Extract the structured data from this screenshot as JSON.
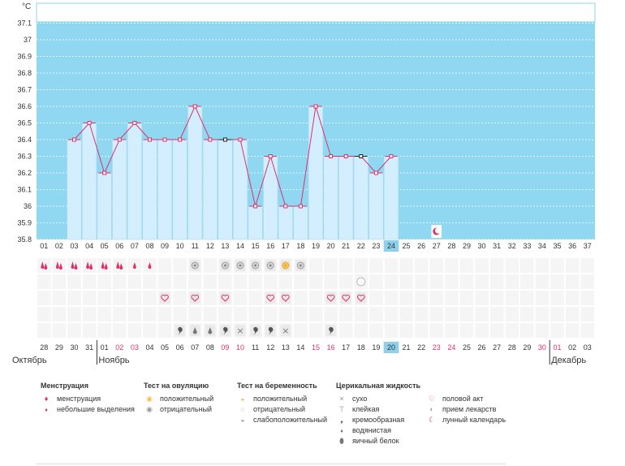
{
  "chart_data": {
    "type": "bar",
    "ylabel": "°C",
    "ylim": [
      35.8,
      37.15
    ],
    "y_ticks": [
      "35.8",
      "35.9",
      "36",
      "36.1",
      "36.2",
      "36.3",
      "36.4",
      "36.5",
      "36.6",
      "36.7",
      "36.8",
      "36.9",
      "37",
      "37.1"
    ],
    "cycle_days": [
      "01",
      "02",
      "03",
      "04",
      "05",
      "06",
      "07",
      "08",
      "09",
      "10",
      "11",
      "12",
      "13",
      "14",
      "15",
      "16",
      "17",
      "18",
      "19",
      "20",
      "21",
      "22",
      "23",
      "24",
      "25",
      "26",
      "27",
      "28",
      "29",
      "30",
      "31",
      "32",
      "33",
      "34",
      "35",
      "36",
      "37"
    ],
    "today_index": 23,
    "temperatures": [
      null,
      null,
      36.4,
      36.5,
      36.2,
      36.4,
      36.5,
      36.4,
      36.4,
      36.4,
      36.6,
      36.4,
      36.4,
      36.4,
      36.0,
      36.3,
      36.0,
      36.0,
      36.6,
      36.3,
      36.3,
      36.3,
      36.2,
      36.3,
      null,
      null,
      null,
      null,
      null,
      null,
      null,
      null,
      null,
      null,
      null,
      null,
      null
    ],
    "marker_styles": [
      "",
      "",
      "pink",
      "pink",
      "pink",
      "pink",
      "pink",
      "pink",
      "pink",
      "pink",
      "pink",
      "pink",
      "black",
      "pink",
      "pink",
      "pink",
      "pink",
      "pink",
      "pink",
      "pink",
      "pink",
      "black",
      "pink",
      "pink",
      "",
      "",
      "",
      "",
      "",
      "",
      "",
      "",
      "",
      "",
      "",
      "",
      ""
    ],
    "calendar_dates": [
      "28",
      "29",
      "30",
      "31",
      "01",
      "02",
      "03",
      "04",
      "05",
      "06",
      "07",
      "08",
      "09",
      "10",
      "11",
      "12",
      "13",
      "14",
      "15",
      "16",
      "17",
      "18",
      "19",
      "20",
      "21",
      "22",
      "23",
      "24",
      "25",
      "26",
      "27",
      "28",
      "29",
      "30",
      "01",
      "02",
      "03"
    ],
    "date_colors": [
      "n",
      "n",
      "n",
      "n",
      "n",
      "r",
      "r",
      "n",
      "n",
      "n",
      "n",
      "n",
      "r",
      "r",
      "n",
      "n",
      "n",
      "n",
      "r",
      "r",
      "n",
      "n",
      "n",
      "n",
      "n",
      "n",
      "r",
      "r",
      "n",
      "n",
      "n",
      "n",
      "n",
      "r",
      "r",
      "n",
      "n"
    ],
    "months": [
      {
        "name": "Октябрь",
        "start": 0
      },
      {
        "name": "Ноябрь",
        "start": 4
      },
      {
        "name": "Декабрь",
        "start": 34
      }
    ],
    "symbol_rows": {
      "menstruation": {
        "0": "full",
        "1": "full",
        "2": "full",
        "3": "full",
        "4": "full",
        "5": "full",
        "6": "light",
        "7": "light"
      },
      "ovulation_test": {
        "10": "neg",
        "12": "neg",
        "13": "neg",
        "14": "neg",
        "15": "neg",
        "16": "pos",
        "17": "neg"
      },
      "pregnancy_test": {
        "21": "negative"
      },
      "sex": {
        "8": true,
        "10": true,
        "12": true,
        "15": true,
        "16": true,
        "19": true,
        "20": true,
        "21": true
      },
      "cervical_fluid": {
        "9": "creamy",
        "10": "watery",
        "11": "watery",
        "12": "creamy",
        "13": "dry",
        "14": "creamy",
        "15": "creamy",
        "16": "dry",
        "19": "creamy"
      },
      "lunar": {
        "26": true
      }
    }
  },
  "legend": {
    "menstruation": {
      "title": "Менструация",
      "items": [
        "менструация",
        "небольшие выделения"
      ]
    },
    "ovulation": {
      "title": "Тест на овуляцию",
      "items": [
        "положительный",
        "отрицательный"
      ]
    },
    "pregnancy": {
      "title": "Тест на беременность",
      "items": [
        "положительный",
        "отрицательный",
        "слабоположительный"
      ]
    },
    "cervical": {
      "title": "Церикальная жидкость",
      "items": [
        "сухо",
        "клейкая",
        "кремообразная",
        "водянистая",
        "яичный белок"
      ]
    },
    "other": {
      "items": [
        "половой акт",
        "прием лекарств",
        "лунный календарь"
      ]
    }
  },
  "colors": {
    "sky": "#90d8f2",
    "bar": "#d3efff",
    "bar_border": "#a9d8ef",
    "line": "#e0306a",
    "red_date": "#e0306a",
    "today_bg": "#8fd0ec"
  }
}
